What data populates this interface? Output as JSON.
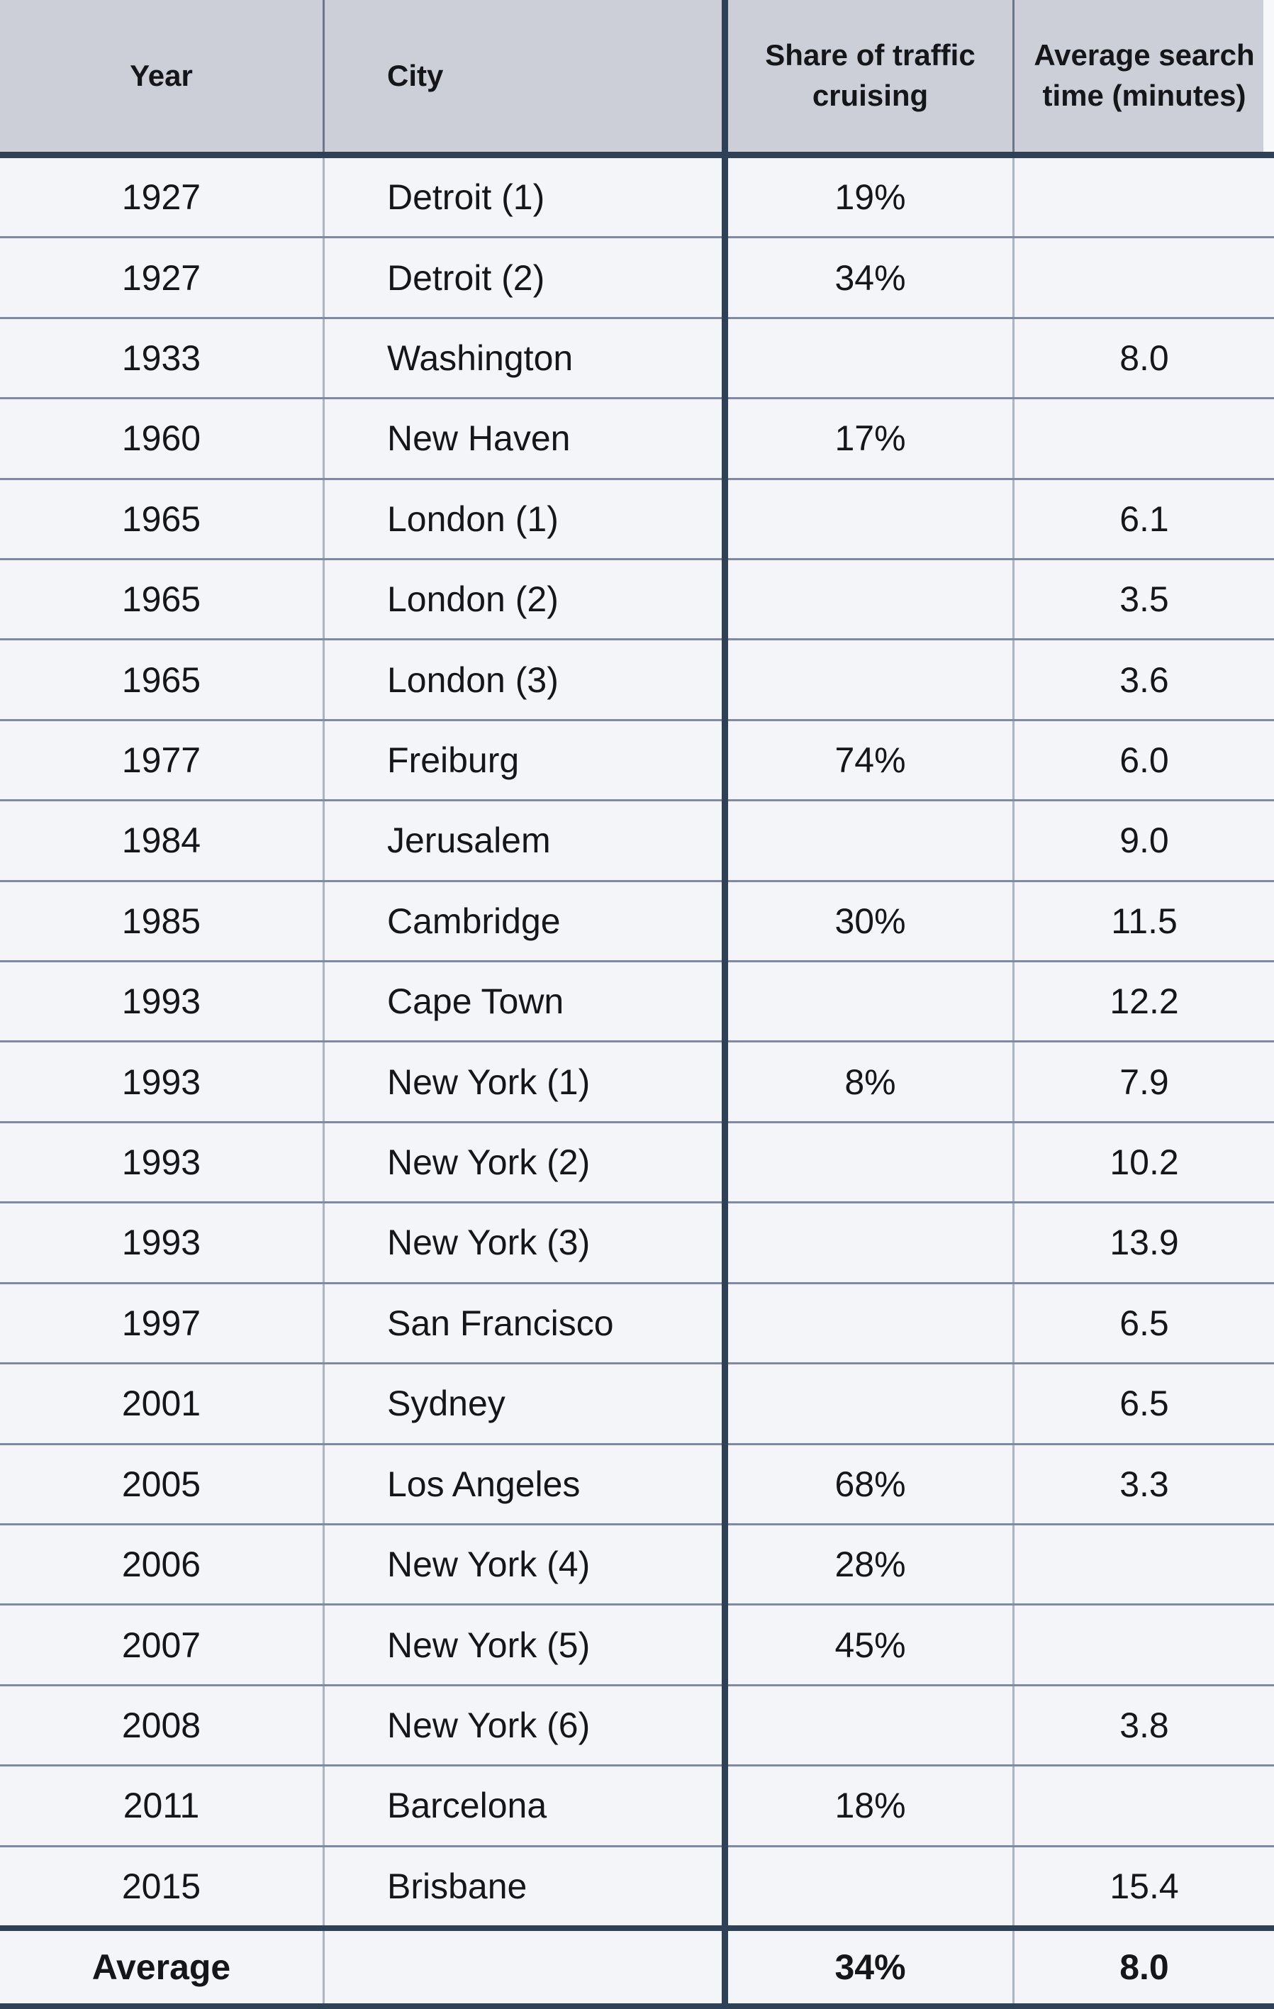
{
  "chart_data": {
    "type": "table",
    "columns": [
      "Year",
      "City",
      "Share of traffic cruising",
      "Average search time (minutes)"
    ],
    "rows": [
      [
        "1927",
        "Detroit (1)",
        "19%",
        ""
      ],
      [
        "1927",
        "Detroit (2)",
        "34%",
        ""
      ],
      [
        "1933",
        "Washington",
        "",
        "8.0"
      ],
      [
        "1960",
        "New Haven",
        "17%",
        ""
      ],
      [
        "1965",
        "London (1)",
        "",
        "6.1"
      ],
      [
        "1965",
        "London (2)",
        "",
        "3.5"
      ],
      [
        "1965",
        "London (3)",
        "",
        "3.6"
      ],
      [
        "1977",
        "Freiburg",
        "74%",
        "6.0"
      ],
      [
        "1984",
        "Jerusalem",
        "",
        "9.0"
      ],
      [
        "1985",
        "Cambridge",
        "30%",
        "11.5"
      ],
      [
        "1993",
        "Cape Town",
        "",
        "12.2"
      ],
      [
        "1993",
        "New York (1)",
        "8%",
        "7.9"
      ],
      [
        "1993",
        "New York (2)",
        "",
        "10.2"
      ],
      [
        "1993",
        "New York (3)",
        "",
        "13.9"
      ],
      [
        "1997",
        "San Francisco",
        "",
        "6.5"
      ],
      [
        "2001",
        "Sydney",
        "",
        "6.5"
      ],
      [
        "2005",
        "Los Angeles",
        "68%",
        "3.3"
      ],
      [
        "2006",
        "New York (4)",
        "28%",
        ""
      ],
      [
        "2007",
        "New York (5)",
        "45%",
        ""
      ],
      [
        "2008",
        "New York (6)",
        "",
        "3.8"
      ],
      [
        "2011",
        "Barcelona",
        "18%",
        ""
      ],
      [
        "2015",
        "Brisbane",
        "",
        "15.4"
      ]
    ],
    "footer": [
      "Average",
      "",
      "34%",
      "8.0"
    ],
    "layout": {
      "grid": "on",
      "header_style": "gray",
      "thick_divider_after_column": "City"
    }
  },
  "colors": {
    "header_background": "#cccfd8",
    "row_background": "#f4f5f8",
    "thick_border": "#2e4157",
    "row_divider": "#7e89a3",
    "column_divider_header": "#6d7789",
    "column_divider_body": "#aeb5c2",
    "text": "#14161a"
  }
}
